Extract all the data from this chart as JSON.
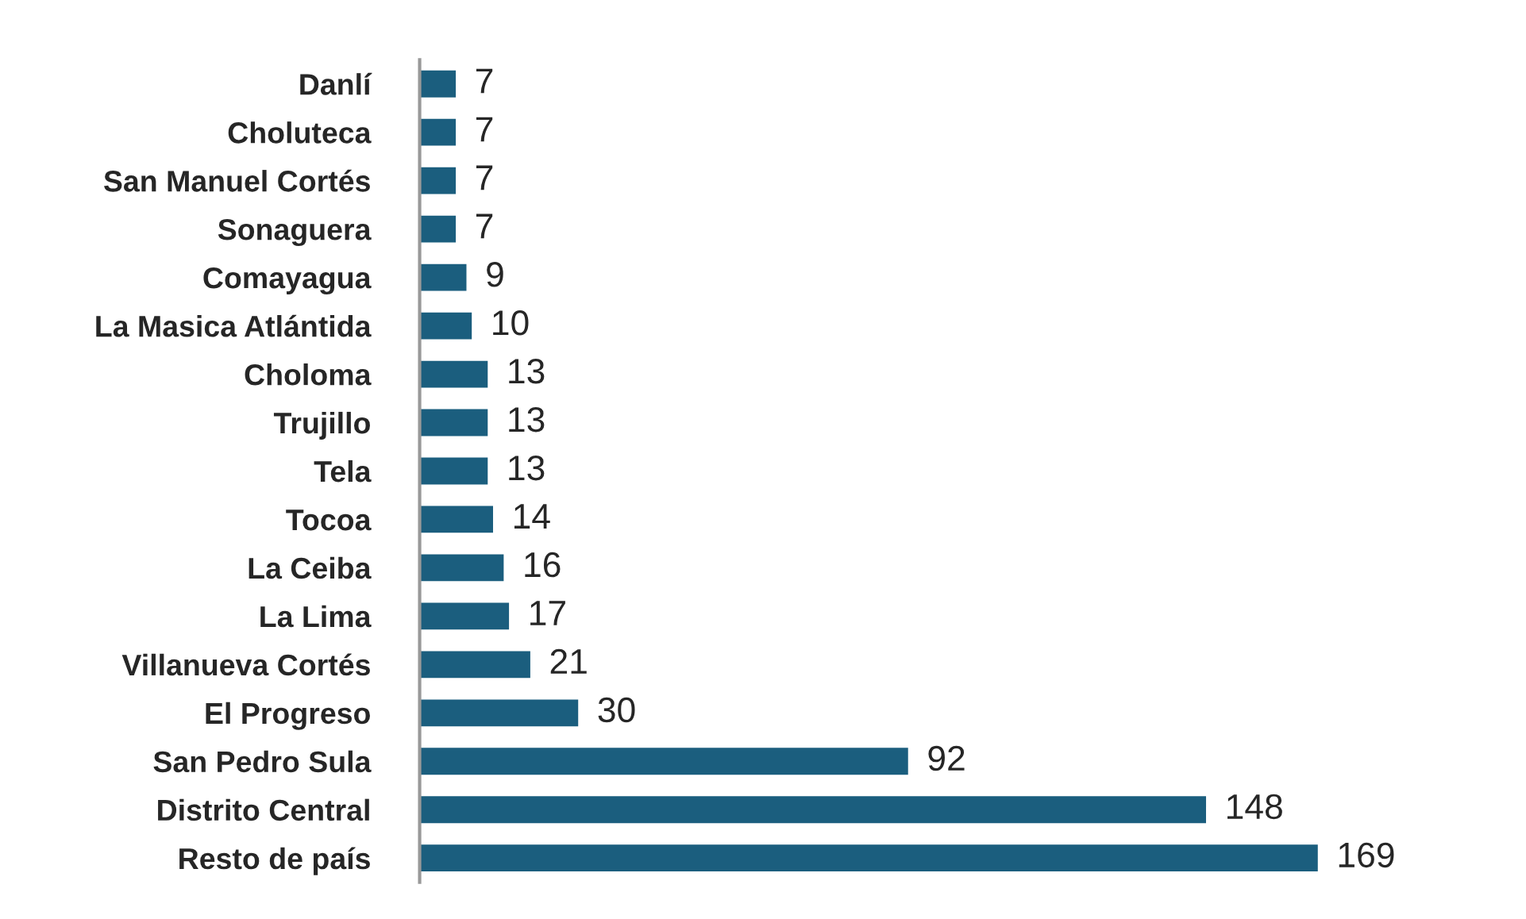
{
  "chart_data": {
    "type": "bar",
    "orientation": "horizontal",
    "categories": [
      "Danlí",
      "Choluteca",
      "San Manuel Cortés",
      "Sonaguera",
      "Comayagua",
      "La Masica Atlántida",
      "Choloma",
      "Trujillo",
      "Tela",
      "Tocoa",
      "La Ceiba",
      "La Lima",
      "Villanueva Cortés",
      "El Progreso",
      "San Pedro Sula",
      "Distrito Central",
      "Resto de país"
    ],
    "values": [
      7,
      7,
      7,
      7,
      9,
      10,
      13,
      13,
      13,
      14,
      16,
      17,
      21,
      30,
      92,
      148,
      169
    ],
    "color": "#1b5e7e",
    "data_labels": true,
    "tick_labels": "y",
    "grid": false,
    "legend": false
  }
}
